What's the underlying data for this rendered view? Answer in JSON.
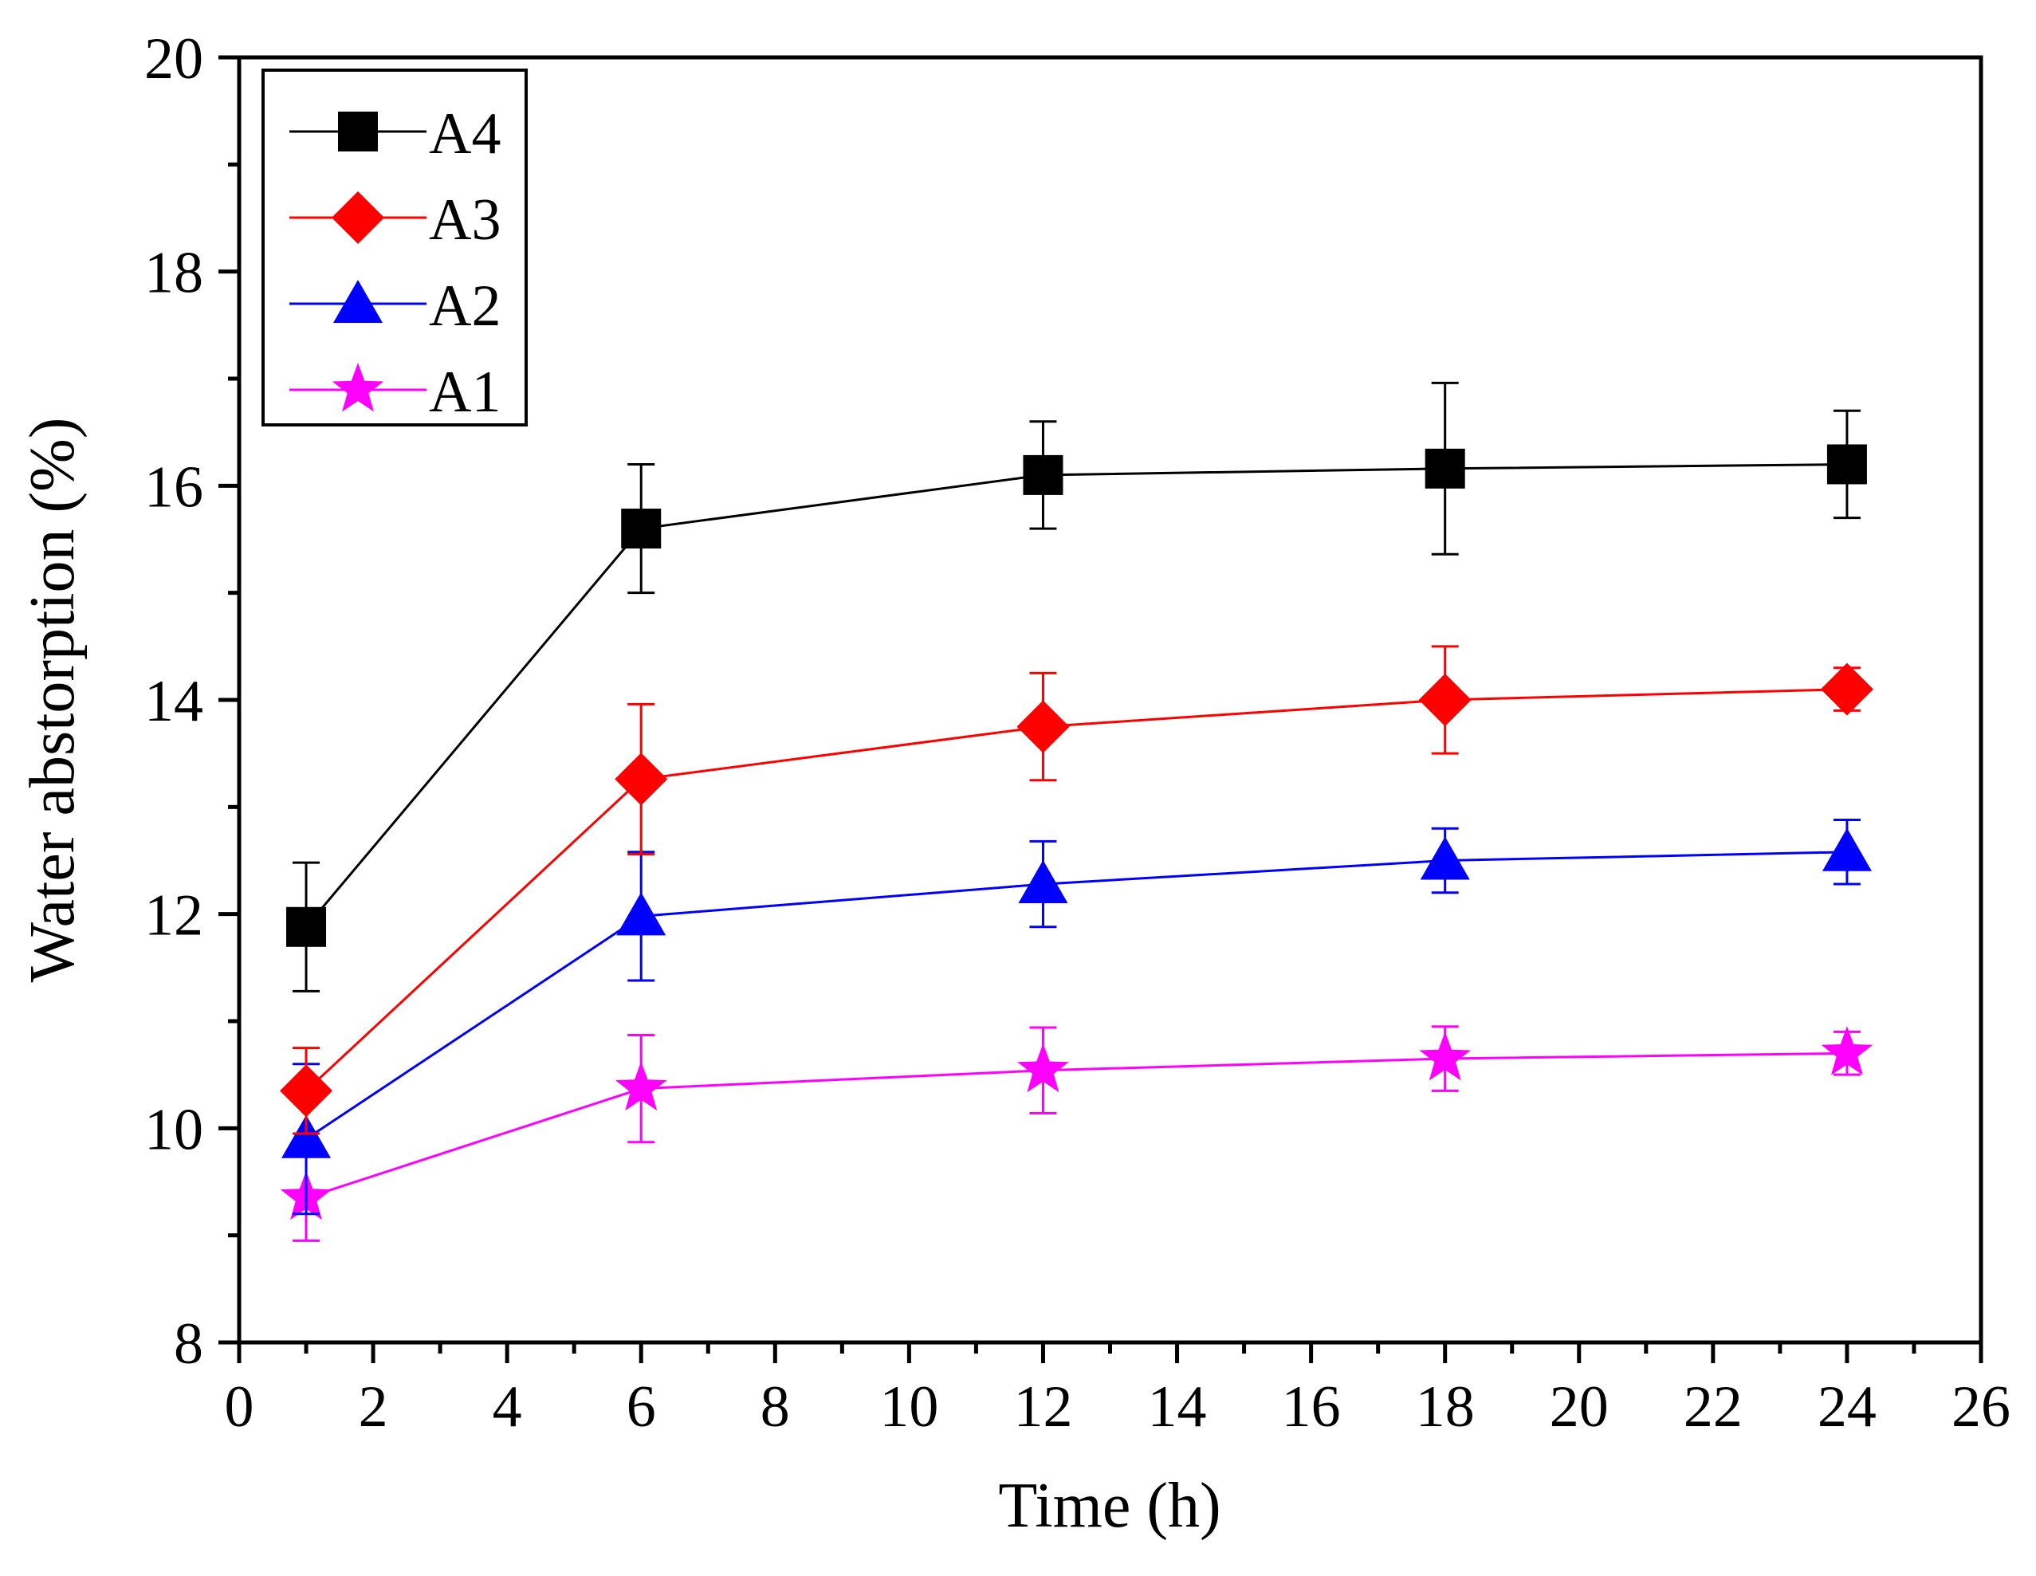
{
  "chart_data": {
    "type": "line",
    "title": "",
    "xlabel": "Time (h)",
    "ylabel": "Water abstorption (%)",
    "xlim": [
      0,
      26
    ],
    "ylim": [
      8,
      20
    ],
    "xticks": [
      0,
      2,
      4,
      6,
      8,
      10,
      12,
      14,
      16,
      18,
      20,
      22,
      24,
      26
    ],
    "yticks": [
      8,
      10,
      12,
      14,
      16,
      18,
      20
    ],
    "x_tick_labels": [
      "0",
      "2",
      "4",
      "6",
      "8",
      "10",
      "12",
      "14",
      "16",
      "18",
      "20",
      "22",
      "24",
      "26"
    ],
    "y_tick_labels": [
      "8",
      "10",
      "12",
      "14",
      "16",
      "18",
      "20"
    ],
    "grid": false,
    "legend_position": "top-left",
    "series": [
      {
        "name": "A4",
        "color": "#000000",
        "marker": "square",
        "x": [
          1,
          6,
          12,
          18,
          24
        ],
        "values": [
          11.88,
          15.6,
          16.1,
          16.16,
          16.2
        ],
        "errors": [
          0.6,
          0.6,
          0.5,
          0.8,
          0.5
        ]
      },
      {
        "name": "A3",
        "color": "#ff0000",
        "marker": "diamond",
        "x": [
          1,
          6,
          12,
          18,
          24
        ],
        "values": [
          10.35,
          13.26,
          13.75,
          14.0,
          14.1
        ],
        "errors": [
          0.4,
          0.7,
          0.5,
          0.5,
          0.2
        ]
      },
      {
        "name": "A2",
        "color": "#0000ff",
        "marker": "triangle",
        "x": [
          1,
          6,
          12,
          18,
          24
        ],
        "values": [
          9.9,
          11.98,
          12.28,
          12.5,
          12.58
        ],
        "errors": [
          0.7,
          0.6,
          0.4,
          0.3,
          0.3
        ]
      },
      {
        "name": "A1",
        "color": "#ff00ff",
        "marker": "star",
        "x": [
          1,
          6,
          12,
          18,
          24
        ],
        "values": [
          9.35,
          10.37,
          10.54,
          10.65,
          10.7
        ],
        "errors": [
          0.4,
          0.5,
          0.4,
          0.3,
          0.2
        ]
      }
    ]
  }
}
